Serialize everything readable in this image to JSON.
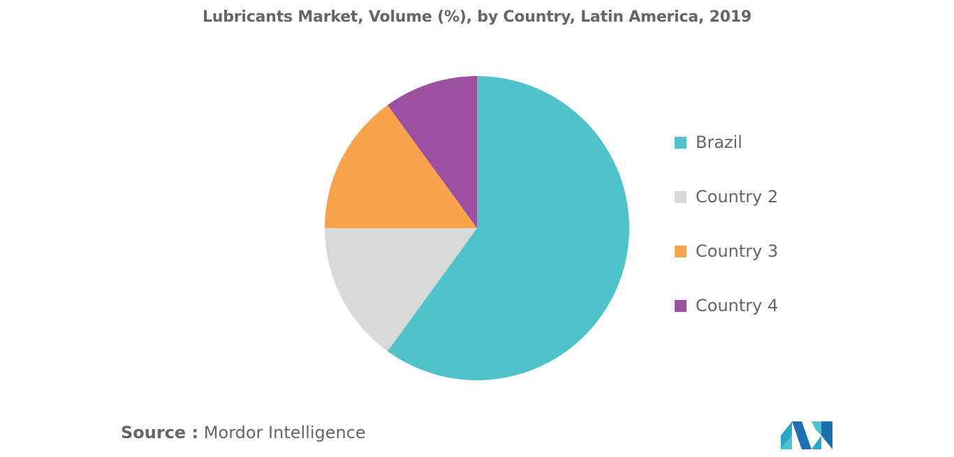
{
  "chart_data": {
    "type": "pie",
    "title": "Lubricants Market, Volume (%), by Country, Latin America, 2019",
    "categories": [
      "Brazil",
      "Country 2",
      "Country 3",
      "Country 4"
    ],
    "values": [
      60,
      15,
      15,
      10
    ],
    "colors": [
      "#4fc3c9",
      "#d9d9d9",
      "#f9a44c",
      "#9c51a0"
    ],
    "legend_position": "right",
    "start_angle": "top",
    "direction": "clockwise"
  },
  "source": {
    "label": "Source :",
    "text": "Mordor Intelligence"
  },
  "logo": {
    "icon": "mordor-intelligence-logo",
    "colors": [
      "#2aa8c9",
      "#1c6fb0",
      "#4fc3c9"
    ]
  }
}
